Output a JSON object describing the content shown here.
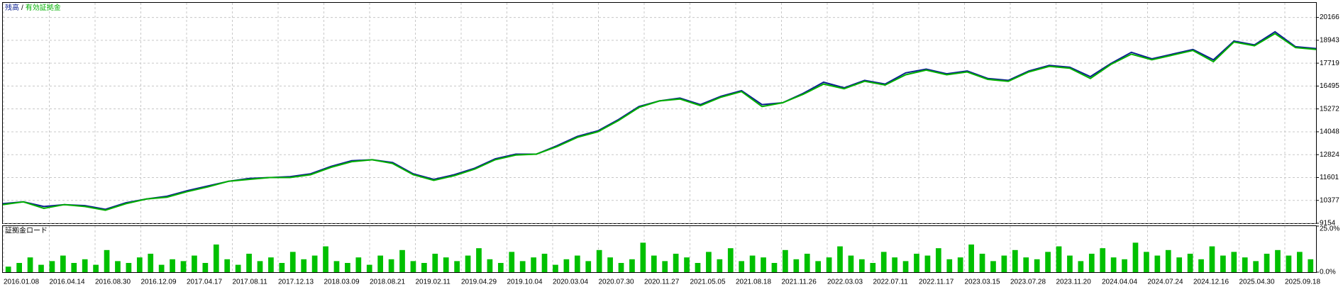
{
  "chart_data": [
    {
      "type": "line",
      "legend_separator": "/",
      "series": [
        {
          "name": "残高",
          "color": "#0a1f8f",
          "values": [
            10200,
            10300,
            10050,
            10150,
            10100,
            9900,
            10250,
            10450,
            10600,
            10900,
            11150,
            11400,
            11550,
            11600,
            11650,
            11800,
            12200,
            12500,
            12550,
            12400,
            11800,
            11500,
            11750,
            12100,
            12600,
            12850,
            12850,
            13300,
            13800,
            14100,
            14700,
            15400,
            15700,
            15850,
            15500,
            15950,
            16250,
            15500,
            15600,
            16100,
            16700,
            16400,
            16800,
            16600,
            17200,
            17400,
            17150,
            17300,
            16900,
            16800,
            17300,
            17600,
            17500,
            17000,
            17700,
            18300,
            17950,
            18200,
            18450,
            17900,
            18900,
            18700,
            19400,
            18600,
            18500
          ]
        },
        {
          "name": "有効証拠金",
          "color": "#00b000",
          "values": [
            10150,
            10300,
            9950,
            10150,
            10050,
            9850,
            10200,
            10450,
            10550,
            10850,
            11100,
            11400,
            11500,
            11600,
            11600,
            11750,
            12150,
            12450,
            12550,
            12350,
            11750,
            11450,
            11700,
            12050,
            12550,
            12800,
            12850,
            13250,
            13750,
            14050,
            14650,
            15350,
            15700,
            15800,
            15450,
            15900,
            16200,
            15400,
            15600,
            16050,
            16600,
            16350,
            16750,
            16550,
            17100,
            17350,
            17100,
            17250,
            16850,
            16750,
            17250,
            17550,
            17450,
            16900,
            17650,
            18200,
            17900,
            18150,
            18400,
            17800,
            18850,
            18650,
            19300,
            18550,
            18450
          ]
        }
      ],
      "ylim": [
        9154,
        20947
      ],
      "yticks": [
        9154,
        10377,
        11601,
        12824,
        14048,
        15272,
        16495,
        17719,
        18943,
        20166
      ],
      "grid": true
    },
    {
      "type": "bar",
      "title": "証拠金ロード",
      "color": "#00c000",
      "values": [
        3,
        5,
        8,
        4,
        6,
        9,
        5,
        7,
        4,
        12,
        6,
        5,
        8,
        10,
        4,
        7,
        6,
        9,
        5,
        15,
        7,
        4,
        10,
        6,
        8,
        5,
        11,
        7,
        9,
        14,
        6,
        5,
        8,
        4,
        9,
        7,
        12,
        6,
        5,
        10,
        8,
        6,
        9,
        13,
        7,
        5,
        11,
        6,
        8,
        10,
        4,
        7,
        9,
        6,
        12,
        8,
        5,
        7,
        16,
        9,
        6,
        10,
        8,
        5,
        11,
        7,
        13,
        6,
        9,
        8,
        5,
        12,
        7,
        10,
        6,
        8,
        14,
        9,
        7,
        5,
        11,
        8,
        6,
        10,
        9,
        13,
        7,
        8,
        15,
        10,
        6,
        9,
        12,
        8,
        7,
        11,
        14,
        9,
        6,
        10,
        13,
        8,
        7,
        16,
        11,
        9,
        12,
        8,
        10,
        7,
        14,
        9,
        11,
        8,
        6,
        10,
        12,
        9,
        11,
        7
      ],
      "ylim": [
        0,
        25
      ],
      "yticks": [
        {
          "value": 0,
          "label": "0.0%"
        },
        {
          "value": 25,
          "label": "25.0%"
        }
      ],
      "xtick_labels": [
        "2016.01.08",
        "2016.04.14",
        "2016.08.30",
        "2016.12.09",
        "2017.04.17",
        "2017.08.11",
        "2017.12.13",
        "2018.03.09",
        "2018.08.21",
        "2019.02.11",
        "2019.04.29",
        "2019.10.04",
        "2020.03.04",
        "2020.07.30",
        "2020.11.27",
        "2021.05.05",
        "2021.08.18",
        "2021.11.26",
        "2022.03.03",
        "2022.07.11",
        "2022.11.17",
        "2023.03.15",
        "2023.07.28",
        "2023.11.20",
        "2024.04.04",
        "2024.07.24",
        "2024.12.16",
        "2025.04.30",
        "2025.09.18"
      ]
    }
  ]
}
